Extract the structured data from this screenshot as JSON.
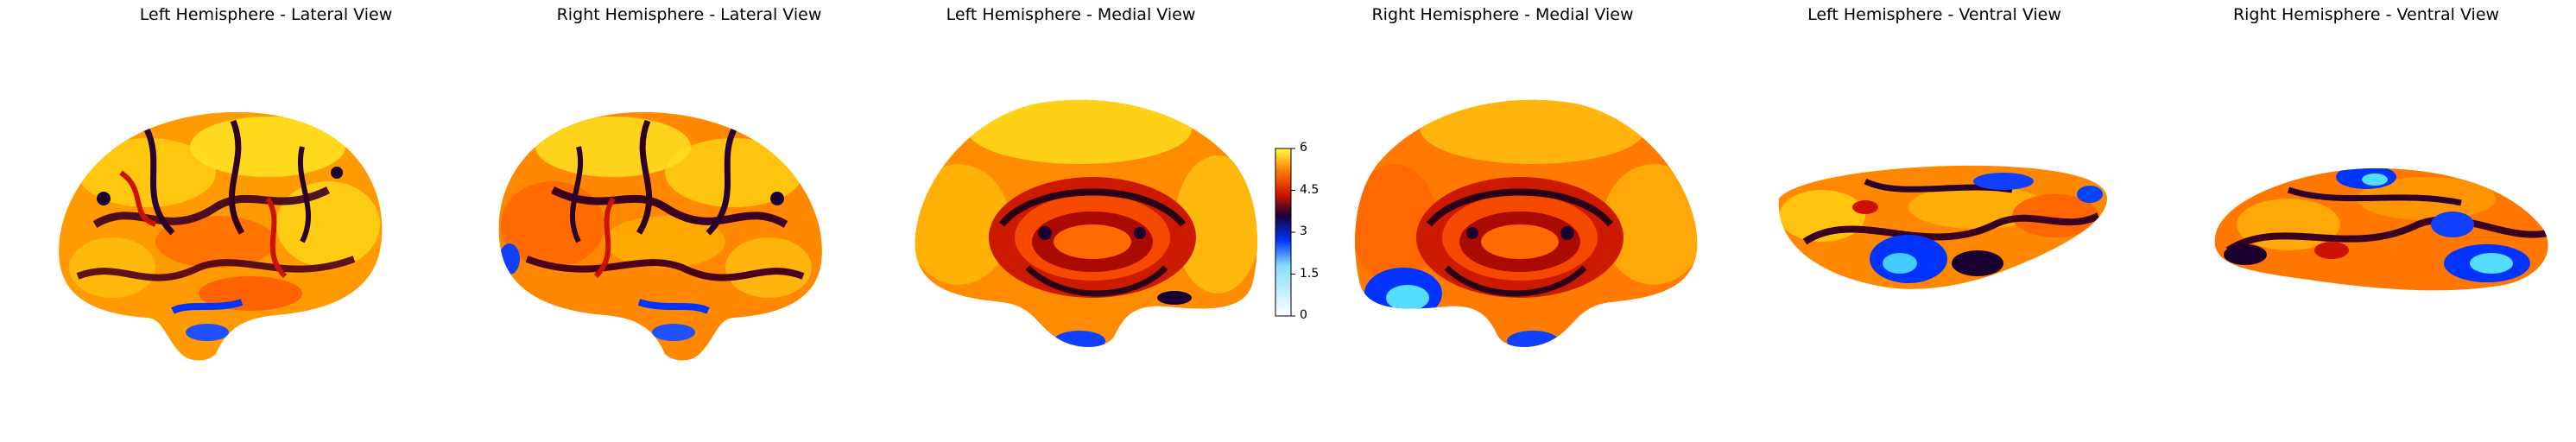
{
  "figure": {
    "panels": [
      {
        "title": "Left Hemisphere - Lateral View"
      },
      {
        "title": "Right Hemisphere - Lateral View"
      },
      {
        "title": "Left Hemisphere - Medial View"
      },
      {
        "title": "Right Hemisphere - Medial View"
      },
      {
        "title": "Left Hemisphere - Ventral View"
      },
      {
        "title": "Right Hemisphere - Ventral View"
      }
    ],
    "colorbar": {
      "min": 0,
      "max": 6,
      "ticks": [
        "0",
        "1.5",
        "3",
        "4.5",
        "6"
      ],
      "colormap": "cold_hot",
      "colors": {
        "low": "#ffffff",
        "cyan": "#33ccff",
        "blue": "#0033ff",
        "dark": "#1a0030",
        "red": "#cc1100",
        "orange": "#ff7700",
        "yellow": "#ffff40"
      }
    }
  }
}
